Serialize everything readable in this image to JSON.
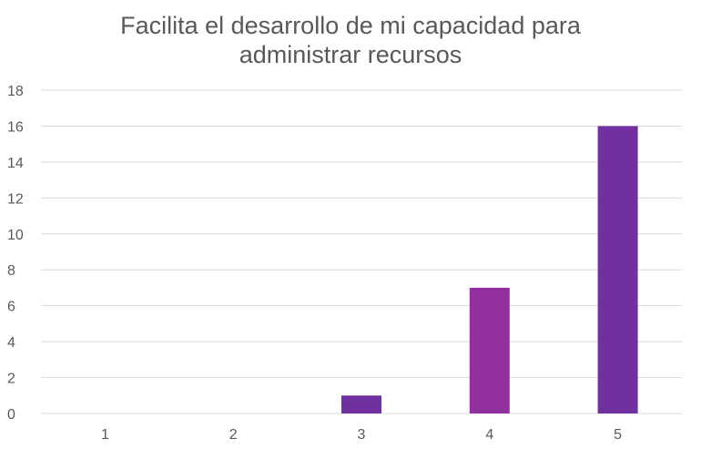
{
  "chart_data": {
    "type": "bar",
    "title_lines": [
      "Facilita el desarrollo de mi capacidad para",
      "administrar recursos"
    ],
    "categories": [
      "1",
      "2",
      "3",
      "4",
      "5"
    ],
    "values": [
      0,
      0,
      1,
      7,
      16
    ],
    "bar_colors": [
      "#7030A0",
      "#7030A0",
      "#7030A0",
      "#9330A0",
      "#7030A0"
    ],
    "ylim": [
      0,
      18
    ],
    "yticks": [
      "0",
      "2",
      "4",
      "6",
      "8",
      "10",
      "12",
      "14",
      "16",
      "18"
    ],
    "grid": true,
    "legend": "none"
  }
}
